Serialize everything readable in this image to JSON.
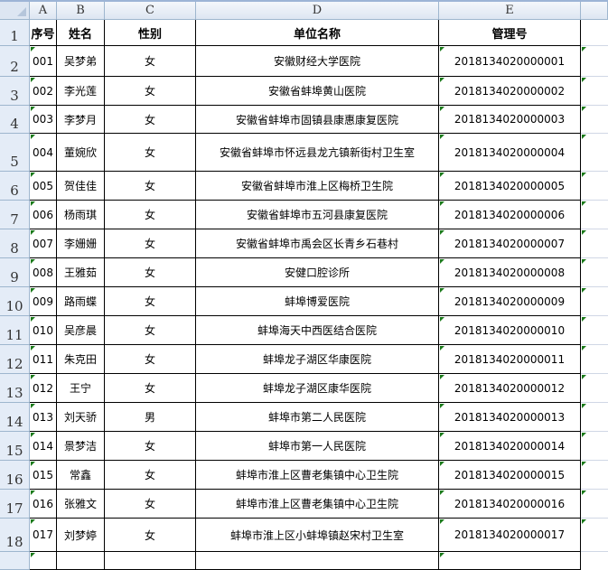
{
  "columns": [
    "A",
    "B",
    "C",
    "D",
    "E"
  ],
  "header": {
    "seq": "序号",
    "name": "姓名",
    "gender": "性别",
    "unit": "单位名称",
    "mgmt": "管理号"
  },
  "rows": [
    {
      "n": "2",
      "seq": "001",
      "name": "吴梦弟",
      "gender": "女",
      "unit": "安徽财经大学医院",
      "mgmt": "2018134020000001"
    },
    {
      "n": "3",
      "seq": "002",
      "name": "李光莲",
      "gender": "女",
      "unit": "安徽省蚌埠黄山医院",
      "mgmt": "2018134020000002"
    },
    {
      "n": "4",
      "seq": "003",
      "name": "李梦月",
      "gender": "女",
      "unit": "安徽省蚌埠市固镇县康惠康复医院",
      "mgmt": "2018134020000003"
    },
    {
      "n": "5",
      "seq": "004",
      "name": "董婉欣",
      "gender": "女",
      "unit": "安徽省蚌埠市怀远县龙亢镇新街村卫生室",
      "mgmt": "2018134020000004"
    },
    {
      "n": "6",
      "seq": "005",
      "name": "贺佳佳",
      "gender": "女",
      "unit": "安徽省蚌埠市淮上区梅桥卫生院",
      "mgmt": "2018134020000005"
    },
    {
      "n": "7",
      "seq": "006",
      "name": "杨雨琪",
      "gender": "女",
      "unit": "安徽省蚌埠市五河县康复医院",
      "mgmt": "2018134020000006"
    },
    {
      "n": "8",
      "seq": "007",
      "name": "李姗姗",
      "gender": "女",
      "unit": "安徽省蚌埠市禹会区长青乡石巷村",
      "mgmt": "2018134020000007"
    },
    {
      "n": "9",
      "seq": "008",
      "name": "王雅茹",
      "gender": "女",
      "unit": "安健口腔诊所",
      "mgmt": "2018134020000008"
    },
    {
      "n": "10",
      "seq": "009",
      "name": "路雨蝶",
      "gender": "女",
      "unit": "蚌埠博爱医院",
      "mgmt": "2018134020000009"
    },
    {
      "n": "11",
      "seq": "010",
      "name": "吴彦晨",
      "gender": "女",
      "unit": "蚌埠海天中西医结合医院",
      "mgmt": "2018134020000010"
    },
    {
      "n": "12",
      "seq": "011",
      "name": "朱克田",
      "gender": "女",
      "unit": "蚌埠龙子湖区华康医院",
      "mgmt": "2018134020000011"
    },
    {
      "n": "13",
      "seq": "012",
      "name": "王宁",
      "gender": "女",
      "unit": "蚌埠龙子湖区康华医院",
      "mgmt": "2018134020000012"
    },
    {
      "n": "14",
      "seq": "013",
      "name": "刘天骄",
      "gender": "男",
      "unit": "蚌埠市第二人民医院",
      "mgmt": "2018134020000013"
    },
    {
      "n": "15",
      "seq": "014",
      "name": "景梦洁",
      "gender": "女",
      "unit": "蚌埠市第一人民医院",
      "mgmt": "2018134020000014"
    },
    {
      "n": "16",
      "seq": "015",
      "name": "常鑫",
      "gender": "女",
      "unit": "蚌埠市淮上区曹老集镇中心卫生院",
      "mgmt": "2018134020000015"
    },
    {
      "n": "17",
      "seq": "016",
      "name": "张雅文",
      "gender": "女",
      "unit": "蚌埠市淮上区曹老集镇中心卫生院",
      "mgmt": "2018134020000016"
    },
    {
      "n": "18",
      "seq": "017",
      "name": "刘梦婷",
      "gender": "女",
      "unit": "蚌埠市淮上区小蚌埠镇赵宋村卫生室",
      "mgmt": "2018134020000017"
    }
  ],
  "header_row_number": "1",
  "indicator_color": "#1a7a1a"
}
